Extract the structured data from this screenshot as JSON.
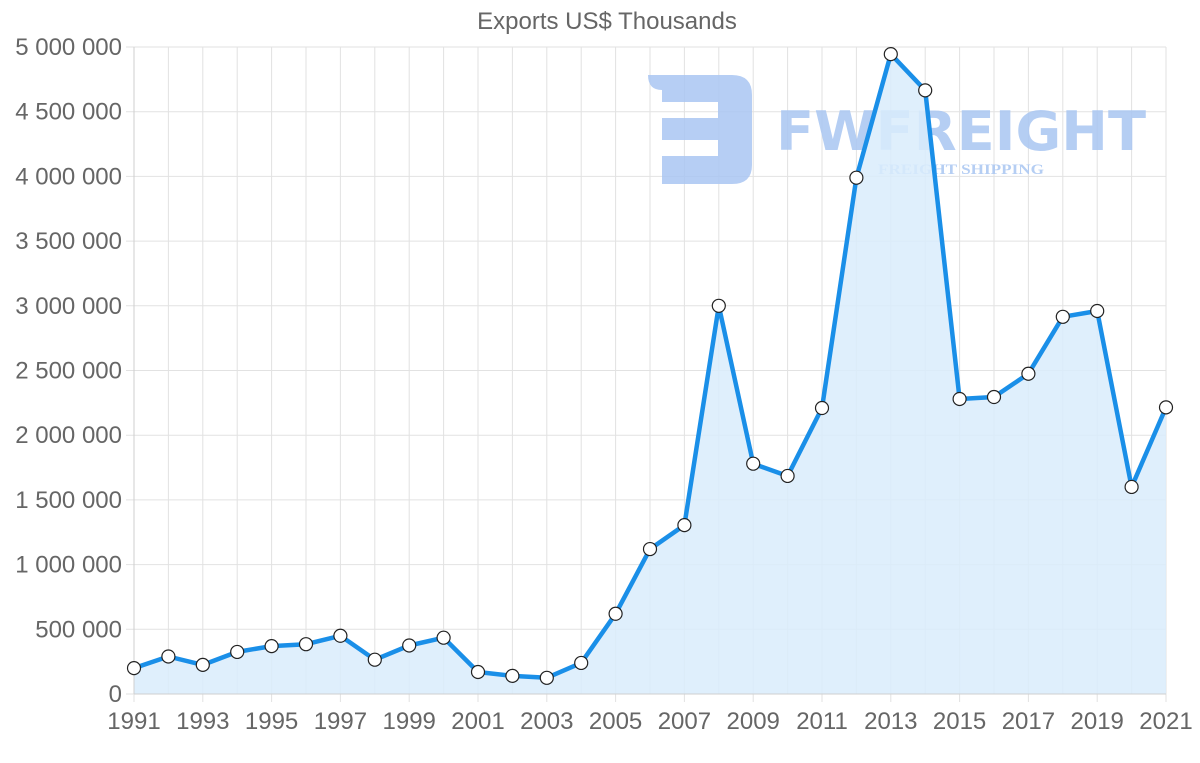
{
  "chart_data": {
    "type": "area",
    "title": "Exports US$ Thousands",
    "xlabel": "",
    "ylabel": "",
    "x": [
      1991,
      1992,
      1993,
      1994,
      1995,
      1996,
      1997,
      1998,
      1999,
      2000,
      2001,
      2002,
      2003,
      2004,
      2005,
      2006,
      2007,
      2008,
      2009,
      2010,
      2011,
      2012,
      2013,
      2014,
      2015,
      2016,
      2017,
      2018,
      2019,
      2020,
      2021
    ],
    "series": [
      {
        "name": "Exports US$ Thousands",
        "values": [
          200000,
          290000,
          225000,
          325000,
          370000,
          385000,
          450000,
          265000,
          375000,
          435000,
          170000,
          140000,
          125000,
          240000,
          620000,
          1120000,
          1305000,
          3000000,
          1780000,
          1685000,
          2210000,
          3990000,
          4945000,
          4665000,
          2280000,
          2295000,
          2475000,
          2915000,
          2960000,
          1600000,
          2215000
        ]
      }
    ],
    "xticks": [
      "1991",
      "1993",
      "1995",
      "1997",
      "1999",
      "2001",
      "2003",
      "2005",
      "2007",
      "2009",
      "2011",
      "2013",
      "2015",
      "2017",
      "2019",
      "2021"
    ],
    "yticks": [
      "0",
      "500 000",
      "1 000 000",
      "1 500 000",
      "2 000 000",
      "2 500 000",
      "3 000 000",
      "3 500 000",
      "4 000 000",
      "4 500 000",
      "5 000 000"
    ],
    "ylim": [
      0,
      5000000
    ],
    "xlim": [
      1991,
      2021
    ],
    "grid": true,
    "legend": "none",
    "colors": {
      "line": "#1a8fe8",
      "fill": "#d9ecfc",
      "point_fill": "#ffffff",
      "point_stroke": "#222222",
      "grid": "#e2e2e2",
      "text": "#666666"
    }
  },
  "watermark": {
    "brand": "FWFREIGHT",
    "tagline": "FREIGHT SHIPPING",
    "color": "#a9c6f2"
  }
}
